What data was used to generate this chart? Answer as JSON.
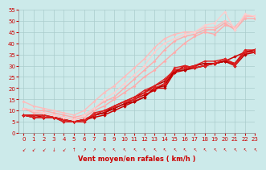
{
  "title": "",
  "xlabel": "Vent moyen/en rafales ( km/h )",
  "ylabel": "",
  "bg_color": "#cceaea",
  "grid_color": "#aacccc",
  "xlim": [
    -0.5,
    23
  ],
  "ylim": [
    0,
    55
  ],
  "yticks": [
    0,
    5,
    10,
    15,
    20,
    25,
    30,
    35,
    40,
    45,
    50,
    55
  ],
  "xticks": [
    0,
    1,
    2,
    3,
    4,
    5,
    6,
    7,
    8,
    9,
    10,
    11,
    12,
    13,
    14,
    15,
    16,
    17,
    18,
    19,
    20,
    21,
    22,
    23
  ],
  "series": [
    {
      "x": [
        0,
        1,
        2,
        3,
        4,
        5,
        6,
        7,
        8,
        9,
        10,
        11,
        12,
        13,
        14,
        15,
        16,
        17,
        18,
        19,
        20,
        21,
        22,
        23
      ],
      "y": [
        8,
        7,
        7,
        7,
        6,
        5,
        6,
        7,
        8,
        10,
        12,
        14,
        16,
        20,
        20,
        27,
        30,
        29,
        30,
        31,
        32,
        31,
        36,
        37
      ],
      "color": "#cc0000",
      "lw": 1.1,
      "marker": "D",
      "ms": 2.2
    },
    {
      "x": [
        0,
        1,
        2,
        3,
        4,
        5,
        6,
        7,
        8,
        9,
        10,
        11,
        12,
        13,
        14,
        15,
        16,
        17,
        18,
        19,
        20,
        21,
        22,
        23
      ],
      "y": [
        8,
        8,
        7,
        7,
        6,
        5,
        6,
        8,
        9,
        11,
        13,
        15,
        17,
        19,
        22,
        27,
        28,
        30,
        31,
        31,
        32,
        34,
        36,
        37
      ],
      "color": "#cc0000",
      "lw": 1.1,
      "marker": "D",
      "ms": 2.2
    },
    {
      "x": [
        0,
        1,
        2,
        3,
        4,
        5,
        6,
        7,
        8,
        9,
        10,
        11,
        12,
        13,
        14,
        15,
        16,
        17,
        18,
        19,
        20,
        21,
        22,
        23
      ],
      "y": [
        8,
        7,
        7,
        7,
        5,
        5,
        5,
        8,
        9,
        11,
        13,
        14,
        16,
        20,
        21,
        28,
        28,
        29,
        30,
        31,
        32,
        30,
        35,
        36
      ],
      "color": "#bb0000",
      "lw": 1.1,
      "marker": "D",
      "ms": 2.2
    },
    {
      "x": [
        0,
        1,
        2,
        3,
        4,
        5,
        6,
        7,
        8,
        9,
        10,
        11,
        12,
        13,
        14,
        15,
        16,
        17,
        18,
        19,
        20,
        21,
        22,
        23
      ],
      "y": [
        8,
        8,
        8,
        7,
        6,
        5,
        6,
        8,
        9,
        12,
        14,
        16,
        18,
        21,
        23,
        28,
        29,
        30,
        31,
        31,
        32,
        31,
        36,
        37
      ],
      "color": "#bb0000",
      "lw": 1.1,
      "marker": "D",
      "ms": 2.2
    },
    {
      "x": [
        0,
        1,
        2,
        3,
        4,
        5,
        6,
        7,
        8,
        9,
        10,
        11,
        12,
        13,
        14,
        15,
        16,
        17,
        18,
        19,
        20,
        21,
        22,
        23
      ],
      "y": [
        8,
        7,
        7,
        7,
        5,
        5,
        5,
        9,
        10,
        12,
        14,
        15,
        18,
        20,
        22,
        29,
        30,
        29,
        30,
        31,
        33,
        30,
        36,
        36
      ],
      "color": "#dd2222",
      "lw": 1.0,
      "marker": "D",
      "ms": 2.0
    },
    {
      "x": [
        0,
        1,
        2,
        3,
        4,
        5,
        6,
        7,
        8,
        9,
        10,
        11,
        12,
        13,
        14,
        15,
        16,
        17,
        18,
        19,
        20,
        21,
        22,
        23
      ],
      "y": [
        8,
        8,
        8,
        7,
        6,
        5,
        6,
        8,
        10,
        12,
        14,
        16,
        19,
        21,
        24,
        28,
        29,
        30,
        32,
        32,
        33,
        31,
        37,
        37
      ],
      "color": "#dd2222",
      "lw": 1.0,
      "marker": "D",
      "ms": 2.0
    },
    {
      "x": [
        0,
        1,
        2,
        3,
        4,
        5,
        6,
        7,
        8,
        9,
        10,
        11,
        12,
        13,
        14,
        15,
        16,
        17,
        18,
        19,
        20,
        21,
        22,
        23
      ],
      "y": [
        11,
        9,
        9,
        8,
        7,
        6,
        7,
        10,
        12,
        15,
        18,
        21,
        25,
        28,
        32,
        36,
        40,
        43,
        45,
        44,
        48,
        47,
        52,
        52
      ],
      "color": "#ffaaaa",
      "lw": 1.0,
      "marker": "D",
      "ms": 2.0
    },
    {
      "x": [
        0,
        1,
        2,
        3,
        4,
        5,
        6,
        7,
        8,
        9,
        10,
        11,
        12,
        13,
        14,
        15,
        16,
        17,
        18,
        19,
        20,
        21,
        22,
        23
      ],
      "y": [
        11,
        10,
        10,
        9,
        8,
        7,
        8,
        11,
        14,
        16,
        20,
        24,
        28,
        32,
        37,
        41,
        43,
        44,
        46,
        46,
        49,
        46,
        51,
        51
      ],
      "color": "#ffaaaa",
      "lw": 1.0,
      "marker": "D",
      "ms": 2.0
    },
    {
      "x": [
        0,
        1,
        2,
        3,
        4,
        5,
        6,
        7,
        8,
        9,
        10,
        11,
        12,
        13,
        14,
        15,
        16,
        17,
        18,
        19,
        20,
        21,
        22,
        23
      ],
      "y": [
        14,
        12,
        11,
        10,
        9,
        8,
        10,
        14,
        18,
        21,
        25,
        29,
        33,
        38,
        42,
        44,
        45,
        45,
        47,
        47,
        50,
        47,
        52,
        52
      ],
      "color": "#ffbbbb",
      "lw": 1.0,
      "marker": "D",
      "ms": 2.0
    },
    {
      "x": [
        0,
        1,
        2,
        3,
        4,
        5,
        6,
        7,
        8,
        9,
        10,
        11,
        12,
        13,
        14,
        15,
        16,
        17,
        18,
        19,
        20,
        21,
        22,
        23
      ],
      "y": [
        11,
        10,
        9,
        8,
        7,
        6,
        8,
        11,
        15,
        18,
        22,
        26,
        30,
        36,
        40,
        42,
        44,
        45,
        48,
        49,
        54,
        46,
        53,
        52
      ],
      "color": "#ffcccc",
      "lw": 0.9,
      "marker": "D",
      "ms": 2.0
    }
  ],
  "arrow_symbols": [
    "↙",
    "↙",
    "↙",
    "↓",
    "↙",
    "↑",
    "↗",
    "↗",
    "↖",
    "↖",
    "↖",
    "↖",
    "↖",
    "↖",
    "↖",
    "↖",
    "↖",
    "↖",
    "↖",
    "↖",
    "↖",
    "↖",
    "↖",
    "↖"
  ]
}
